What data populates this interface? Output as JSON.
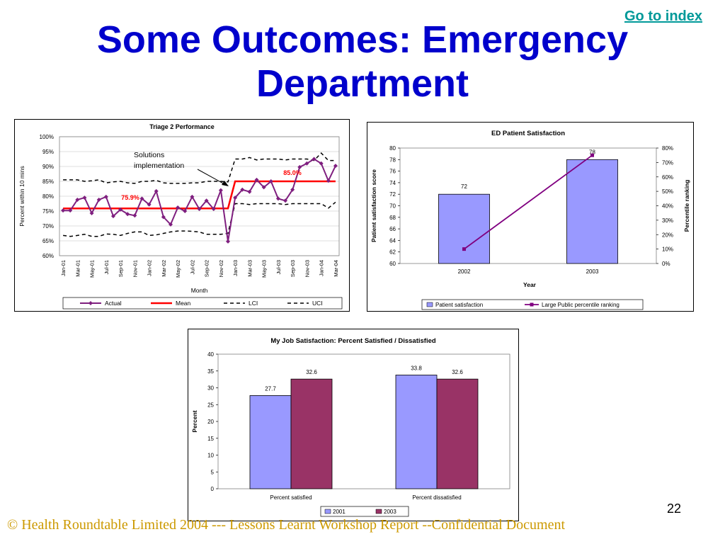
{
  "header": {
    "link_label": "Go to index",
    "title_line1": "Some Outcomes: Emergency",
    "title_line2": "Department"
  },
  "footer": {
    "copyright": "© Health Roundtable Limited 2004  ---   Lessons Learnt Workshop Report --Confidential Document",
    "page_number": "22"
  },
  "chart_data": [
    {
      "type": "line",
      "title": "Triage 2 Performance",
      "xlabel": "Month",
      "ylabel": "Percent within 10 mins",
      "ylim": [
        0.6,
        1.0
      ],
      "y_ticks": [
        "60%",
        "65%",
        "70%",
        "75%",
        "80%",
        "85%",
        "90%",
        "95%",
        "100%"
      ],
      "x": [
        "Jan-01",
        "Feb-01",
        "Mar-01",
        "Apr-01",
        "May-01",
        "Jun-01",
        "Jul-01",
        "Aug-01",
        "Sep-01",
        "Oct-01",
        "Nov-01",
        "Dec-01",
        "Jan-02",
        "Feb-02",
        "Mar-02",
        "Apr-02",
        "May-02",
        "Jun-02",
        "Jul-02",
        "Aug-02",
        "Sep-02",
        "Oct-02",
        "Nov-02",
        "Dec-02",
        "Jan-03",
        "Feb-03",
        "Mar-03",
        "Apr-03",
        "May-03",
        "Jun-03",
        "Jul-03",
        "Aug-03",
        "Sep-03",
        "Oct-03",
        "Nov-03",
        "Dec-03",
        "Jan-04",
        "Feb-04",
        "Mar-04"
      ],
      "x_tick_labels": [
        "Jan-01",
        "Mar-01",
        "May-01",
        "Jul-01",
        "Sep-01",
        "Nov-01",
        "Jan-02",
        "Mar-02",
        "May-02",
        "Jul-02",
        "Sep-02",
        "Nov-02",
        "Jan-03",
        "Mar-03",
        "May-03",
        "Jul-03",
        "Sep-03",
        "Nov-03",
        "Jan-04",
        "Mar-04"
      ],
      "series": [
        {
          "name": "Actual",
          "color": "#7f1f7f",
          "style": "line-marker",
          "values": [
            0.752,
            0.752,
            0.788,
            0.795,
            0.743,
            0.788,
            0.798,
            0.733,
            0.755,
            0.74,
            0.735,
            0.792,
            0.772,
            0.817,
            0.73,
            0.705,
            0.762,
            0.75,
            0.798,
            0.757,
            0.785,
            0.757,
            0.82,
            0.648,
            0.795,
            0.822,
            0.815,
            0.855,
            0.83,
            0.85,
            0.792,
            0.785,
            0.822,
            0.898,
            0.91,
            0.925,
            0.91,
            0.852,
            0.902
          ]
        },
        {
          "name": "Mean",
          "color": "#ff0000",
          "style": "solid",
          "values": [
            0.759,
            0.759,
            0.759,
            0.759,
            0.759,
            0.759,
            0.759,
            0.759,
            0.759,
            0.759,
            0.759,
            0.759,
            0.759,
            0.759,
            0.759,
            0.759,
            0.759,
            0.759,
            0.759,
            0.759,
            0.759,
            0.759,
            0.759,
            0.759,
            0.85,
            0.85,
            0.85,
            0.85,
            0.85,
            0.85,
            0.85,
            0.85,
            0.85,
            0.85,
            0.85,
            0.85,
            0.85,
            0.85,
            0.85
          ]
        },
        {
          "name": "LCI",
          "color": "#000000",
          "style": "dashed",
          "values": [
            0.668,
            0.665,
            0.668,
            0.672,
            0.665,
            0.665,
            0.673,
            0.672,
            0.668,
            0.675,
            0.68,
            0.68,
            0.668,
            0.67,
            0.675,
            0.68,
            0.683,
            0.683,
            0.682,
            0.68,
            0.672,
            0.672,
            0.672,
            0.675,
            0.775,
            0.775,
            0.772,
            0.775,
            0.775,
            0.775,
            0.775,
            0.772,
            0.775,
            0.775,
            0.775,
            0.775,
            0.775,
            0.76,
            0.78
          ]
        },
        {
          "name": "UCI",
          "color": "#000000",
          "style": "dashed",
          "values": [
            0.855,
            0.855,
            0.855,
            0.85,
            0.852,
            0.855,
            0.845,
            0.848,
            0.85,
            0.845,
            0.843,
            0.85,
            0.85,
            0.853,
            0.845,
            0.843,
            0.843,
            0.843,
            0.845,
            0.845,
            0.85,
            0.85,
            0.85,
            0.848,
            0.925,
            0.925,
            0.93,
            0.922,
            0.925,
            0.925,
            0.925,
            0.922,
            0.925,
            0.925,
            0.925,
            0.92,
            0.945,
            0.92,
            0.92
          ]
        }
      ],
      "annotations": [
        {
          "text": "Solutions",
          "color": "#000000"
        },
        {
          "text": "implementation",
          "color": "#000000"
        },
        {
          "text": "75.9%",
          "color": "#ff0000"
        },
        {
          "text": "85.0%",
          "color": "#ff0000"
        }
      ],
      "legend": "bottom"
    },
    {
      "type": "bar",
      "title": "ED Patient Satisfaction",
      "categories": [
        "2002",
        "2003"
      ],
      "xlabel": "Year",
      "ylabel": "Patient satisfaction score",
      "y2label": "Percentile ranking",
      "ylim": [
        60,
        80
      ],
      "y_ticks": [
        "60",
        "62",
        "64",
        "66",
        "68",
        "70",
        "72",
        "74",
        "76",
        "78",
        "80"
      ],
      "y2lim": [
        0,
        0.8
      ],
      "y2_ticks": [
        "0%",
        "10%",
        "20%",
        "30%",
        "40%",
        "50%",
        "60%",
        "70%",
        "80%"
      ],
      "series": [
        {
          "name": "Patient satisfaction",
          "color": "#9999ff",
          "values": [
            72,
            78
          ],
          "data_labels": [
            "72",
            "78"
          ]
        },
        {
          "name": "Large Public percentile ranking",
          "color": "#800080",
          "axis": "secondary",
          "values": [
            0.1,
            0.75
          ]
        }
      ],
      "legend": "bottom"
    },
    {
      "type": "bar",
      "title": "My Job Satisfaction: Percent Satisfied / Dissatisfied",
      "categories": [
        "Percent satisfied",
        "Percent dissatisfied"
      ],
      "ylabel": "Percent",
      "ylim": [
        0,
        40
      ],
      "y_ticks": [
        "0",
        "5",
        "10",
        "15",
        "20",
        "25",
        "30",
        "35",
        "40"
      ],
      "series": [
        {
          "name": "2001",
          "color": "#9999ff",
          "values": [
            27.7,
            33.8
          ],
          "data_labels": [
            "27.7",
            "33.8"
          ]
        },
        {
          "name": "2003",
          "color": "#993366",
          "values": [
            32.6,
            32.6
          ],
          "data_labels": [
            "32.6",
            "32.6"
          ]
        }
      ],
      "legend": "bottom"
    }
  ]
}
